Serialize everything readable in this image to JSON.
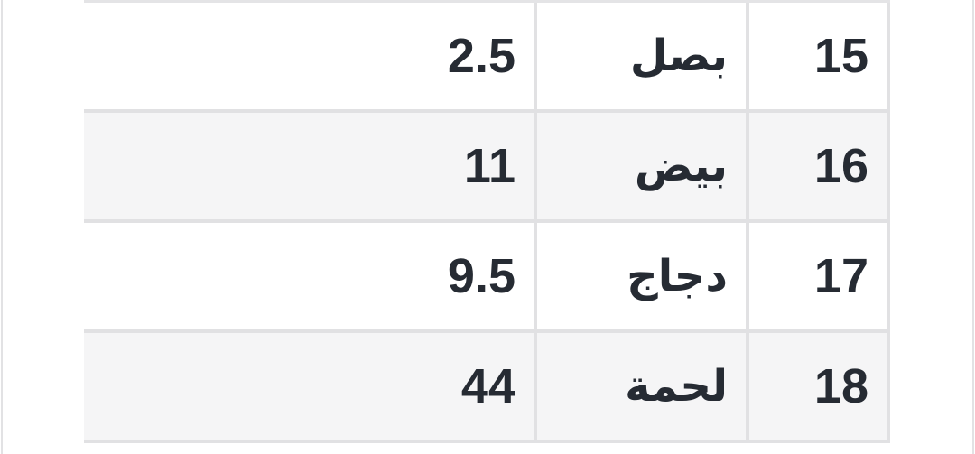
{
  "page": {
    "background": "#ffffff"
  },
  "colors": {
    "text": "#262b33",
    "row_bg": "#ffffff",
    "row_alt_bg": "#f5f5f6",
    "border": "#e1e1e3"
  },
  "table": {
    "direction": "rtl",
    "columns": [
      "value",
      "name",
      "index"
    ],
    "rows": [
      {
        "index": "15",
        "name": "بصل",
        "value": "2.5"
      },
      {
        "index": "16",
        "name": "بيض",
        "value": "11"
      },
      {
        "index": "17",
        "name": "دجاج",
        "value": "9.5"
      },
      {
        "index": "18",
        "name": "لحمة",
        "value": "44"
      }
    ]
  }
}
